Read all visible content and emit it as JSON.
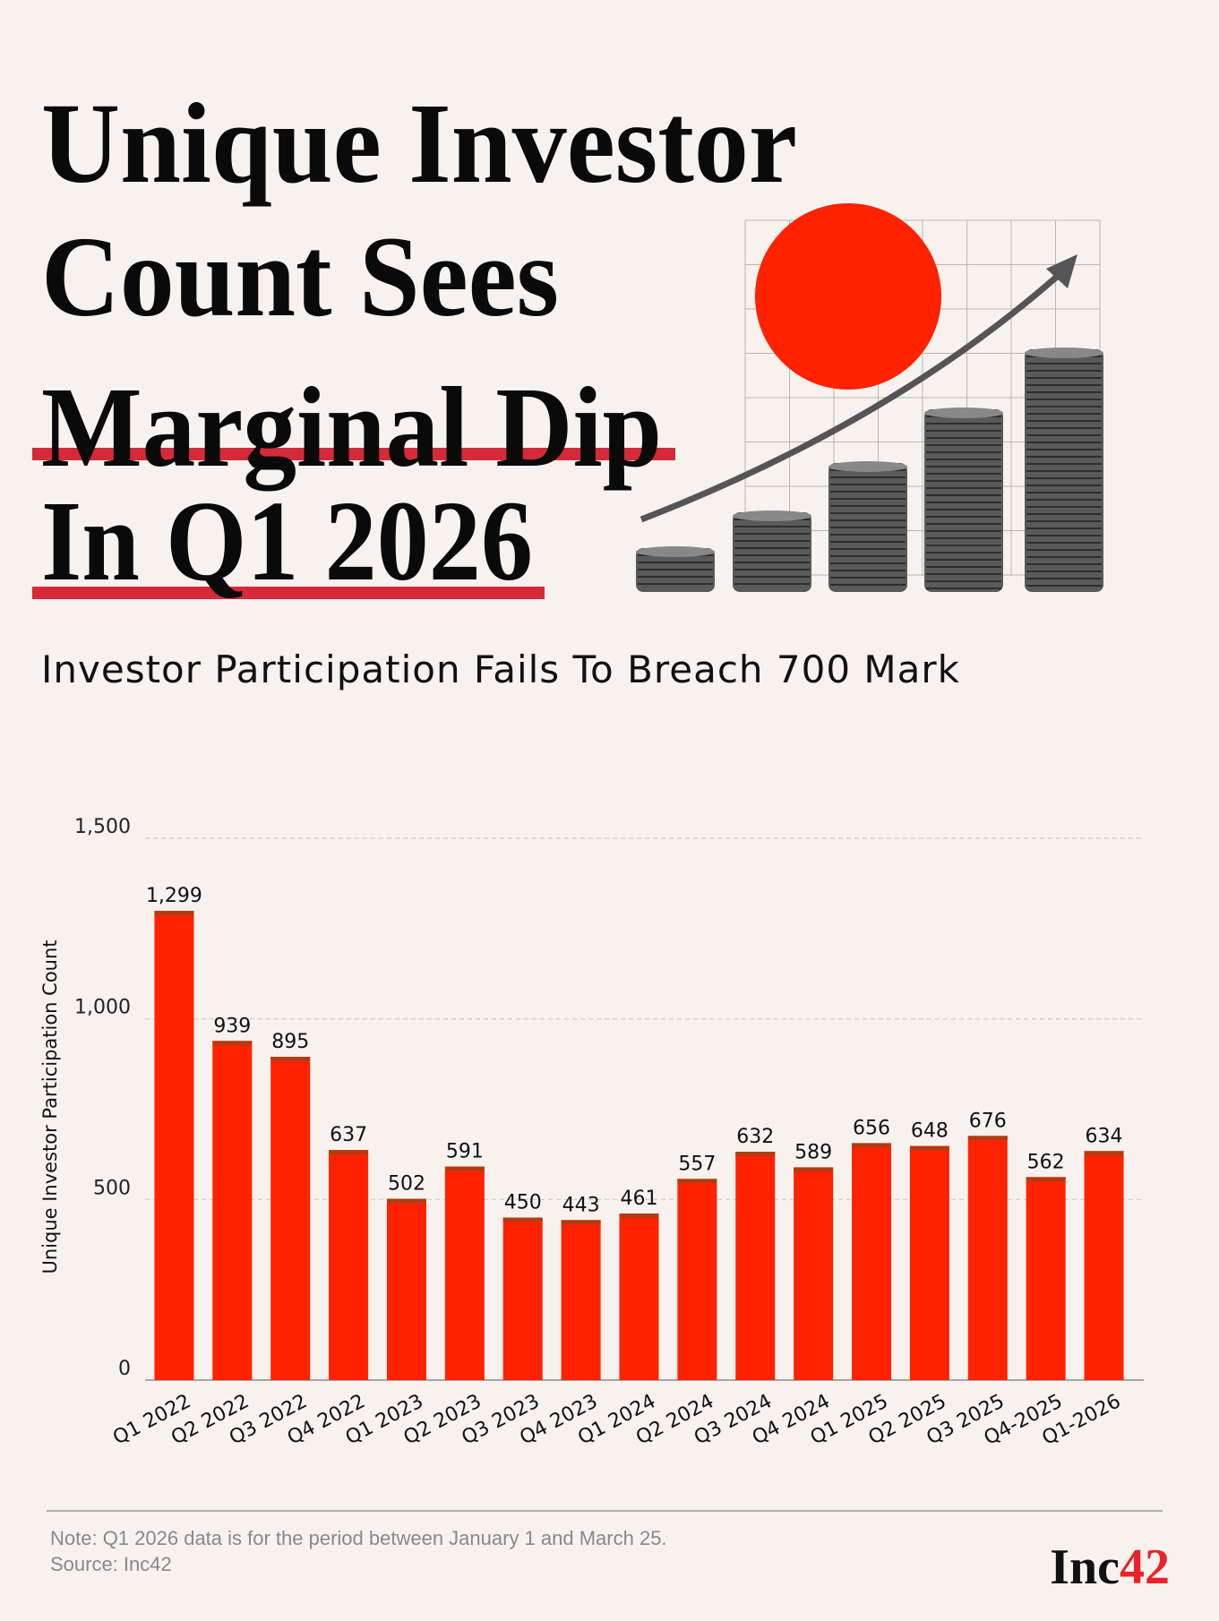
{
  "title_lines": [
    "Unique Investor",
    "Count Sees",
    "Marginal Dip",
    "In Q1 2026"
  ],
  "subtitle": "Investor Participation Fails To Breach 700 Mark",
  "chart_data": {
    "type": "bar",
    "categories": [
      "Q1 2022",
      "Q2 2022",
      "Q3 2022",
      "Q4 2022",
      "Q1 2023",
      "Q2 2023",
      "Q3 2023",
      "Q4 2023",
      "Q1 2024",
      "Q2 2024",
      "Q3 2024",
      "Q4 2024",
      "Q1 2025",
      "Q2 2025",
      "Q3 2025",
      "Q4-2025",
      "Q1-2026"
    ],
    "values": [
      1299,
      939,
      895,
      637,
      502,
      591,
      450,
      443,
      461,
      557,
      632,
      589,
      656,
      648,
      676,
      562,
      634
    ],
    "value_labels": [
      "1,299",
      "939",
      "895",
      "637",
      "502",
      "591",
      "450",
      "443",
      "461",
      "557",
      "632",
      "589",
      "656",
      "648",
      "676",
      "562",
      "634"
    ],
    "color": "#ff2200",
    "ylabel": "Unique Investor Participation Count",
    "ylim": [
      0,
      1500
    ],
    "yticks": [
      0,
      500,
      {
        "value": 1000,
        "label": "1,000"
      },
      {
        "value": 1500,
        "label": "1,500"
      }
    ],
    "grid": true
  },
  "note": "Note: Q1 2026 data is for the period between January 1 and March 25.",
  "source": "Source: Inc42",
  "logo": {
    "text": "Inc",
    "accent": "42"
  }
}
